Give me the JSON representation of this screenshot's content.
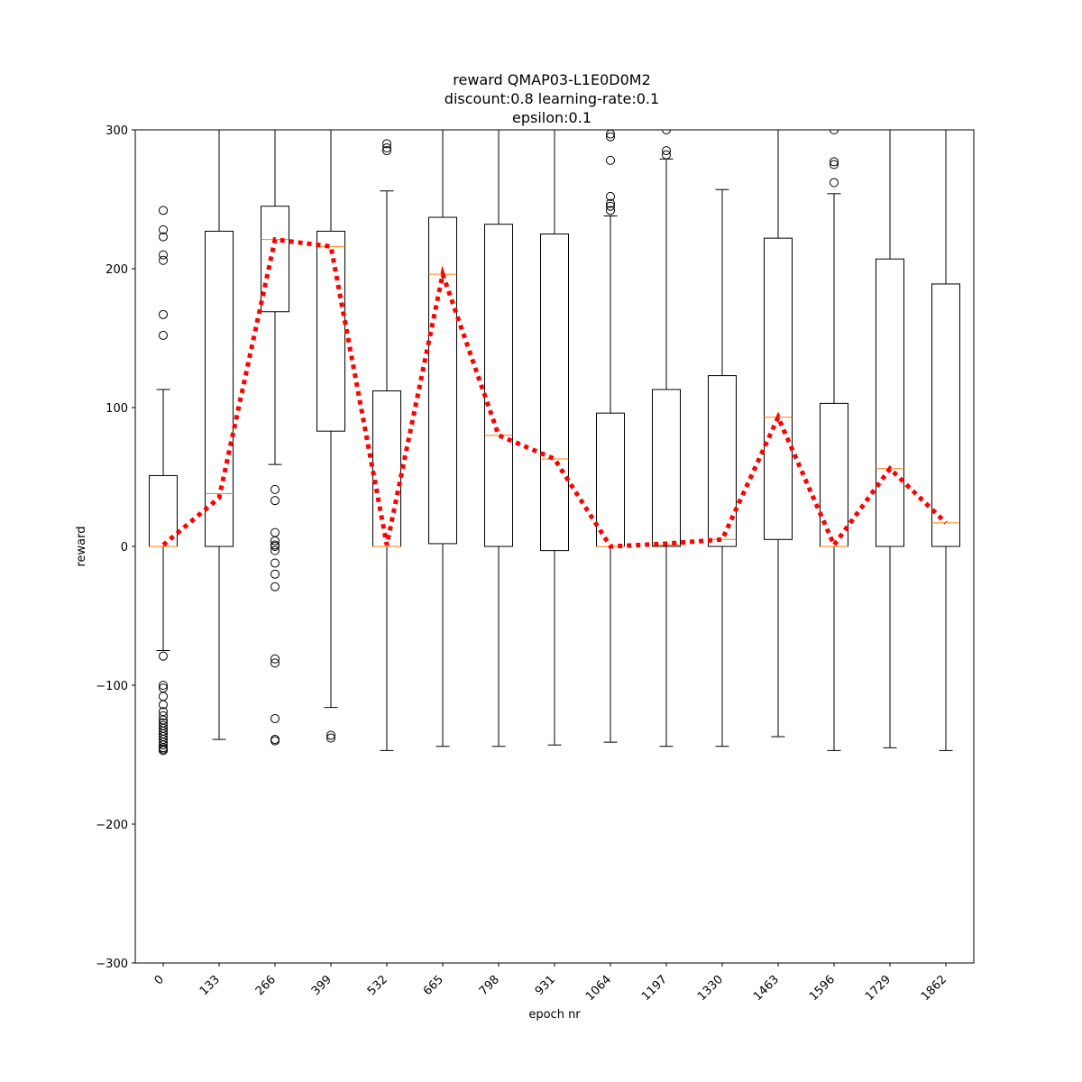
{
  "chart_data": {
    "type": "box",
    "title_lines": [
      "reward QMAP03-L1E0D0M2",
      "discount:0.8 learning-rate:0.1",
      "epsilon:0.1"
    ],
    "xlabel": "epoch nr",
    "ylabel": "reward",
    "ylim": [
      -300,
      300
    ],
    "yticks": [
      -300,
      -200,
      -100,
      0,
      100,
      200,
      300
    ],
    "ytick_labels": [
      "−300",
      "−200",
      "−100",
      "0",
      "100",
      "200",
      "300"
    ],
    "categories": [
      "0",
      "133",
      "266",
      "399",
      "532",
      "665",
      "798",
      "931",
      "1064",
      "1197",
      "1330",
      "1463",
      "1596",
      "1729",
      "1862"
    ],
    "boxes": [
      {
        "whislo": -75,
        "q1": 0,
        "med": 0,
        "q3": 51,
        "whishi": 113,
        "fliers": [
          -147,
          -146,
          -145,
          -143,
          -141,
          -139,
          -137,
          -135,
          -133,
          -131,
          -129,
          -127,
          -125,
          -122,
          -119,
          -114,
          -108,
          -102,
          -100,
          -79,
          152,
          167,
          206,
          210,
          223,
          228,
          242
        ]
      },
      {
        "whislo": -139,
        "q1": 0,
        "med": 38,
        "q3": 227,
        "whishi": 300,
        "fliers": []
      },
      {
        "whislo": 59,
        "q1": 169,
        "med": 221,
        "q3": 245,
        "whishi": 300,
        "fliers": [
          -140,
          -139,
          -124,
          -84,
          -81,
          -29,
          -20,
          -12,
          -3,
          0,
          1,
          4,
          10,
          33,
          41
        ]
      },
      {
        "whislo": -116,
        "q1": 83,
        "med": 216,
        "q3": 227,
        "whishi": 300,
        "fliers": [
          -138,
          -136
        ]
      },
      {
        "whislo": -147,
        "q1": 0,
        "med": 0,
        "q3": 112,
        "whishi": 256,
        "fliers": [
          285,
          287,
          290
        ]
      },
      {
        "whislo": -144,
        "q1": 2,
        "med": 196,
        "q3": 237,
        "whishi": 300,
        "fliers": []
      },
      {
        "whislo": -144,
        "q1": 0,
        "med": 80,
        "q3": 232,
        "whishi": 300,
        "fliers": []
      },
      {
        "whislo": -143,
        "q1": -3,
        "med": 63,
        "q3": 225,
        "whishi": 300,
        "fliers": []
      },
      {
        "whislo": -141,
        "q1": 0,
        "med": 0,
        "q3": 96,
        "whishi": 238,
        "fliers": [
          242,
          245,
          247,
          252,
          278,
          295,
          297
        ]
      },
      {
        "whislo": -144,
        "q1": 0,
        "med": 1,
        "q3": 113,
        "whishi": 279,
        "fliers": [
          282,
          285,
          300
        ]
      },
      {
        "whislo": -144,
        "q1": 0,
        "med": 5,
        "q3": 123,
        "whishi": 257,
        "fliers": []
      },
      {
        "whislo": -137,
        "q1": 5,
        "med": 93,
        "q3": 222,
        "whishi": 300,
        "fliers": []
      },
      {
        "whislo": -147,
        "q1": 0,
        "med": 0,
        "q3": 103,
        "whishi": 254,
        "fliers": [
          262,
          275,
          277,
          300
        ]
      },
      {
        "whislo": -145,
        "q1": 0,
        "med": 56,
        "q3": 207,
        "whishi": 300,
        "fliers": []
      },
      {
        "whislo": -147,
        "q1": 0,
        "med": 17,
        "q3": 189,
        "whishi": 300,
        "fliers": []
      }
    ],
    "mean_line": {
      "values": [
        1,
        35,
        221,
        216,
        1,
        196,
        80,
        63,
        0,
        2,
        5,
        93,
        1,
        56,
        17
      ],
      "color": "#ff0000",
      "style": "dotted"
    },
    "median_color": "#ff7f0e",
    "box_color": "#000000",
    "grid": false
  }
}
